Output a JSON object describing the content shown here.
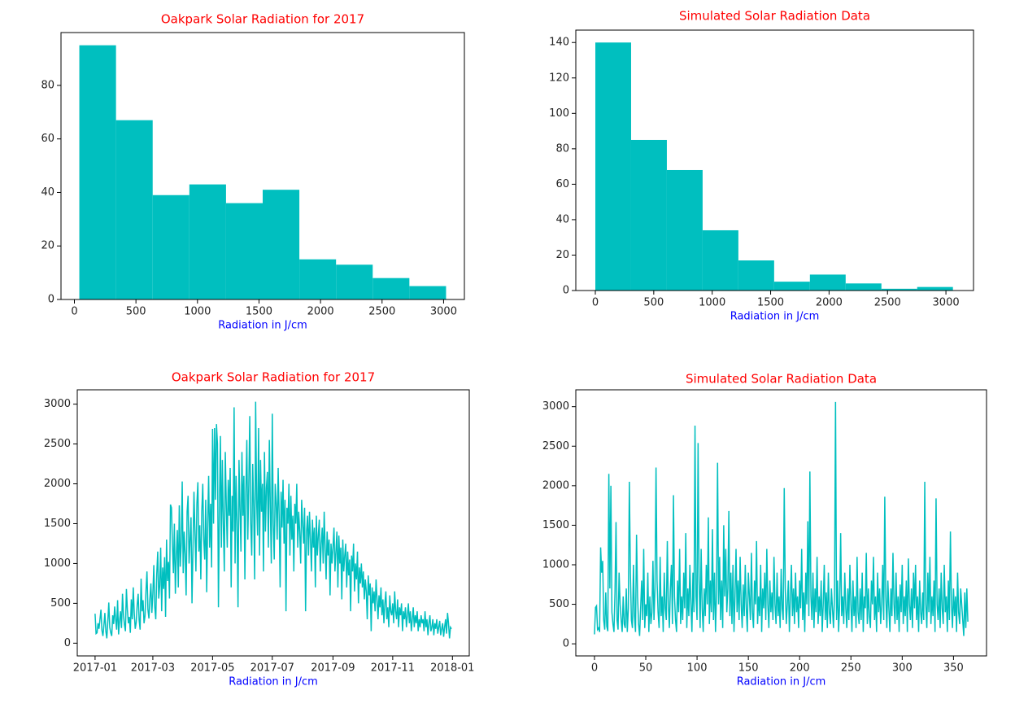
{
  "chart_data": [
    {
      "type": "histogram",
      "title": "Oakpark Solar Radiation for 2017",
      "xlabel": "Radiation in J/cm",
      "color": "#00bfbf",
      "bins": [
        40,
        338,
        636,
        934,
        1232,
        1530,
        1828,
        2126,
        2424,
        2722,
        3020
      ],
      "values": [
        95,
        67,
        39,
        43,
        36,
        41,
        15,
        13,
        8,
        5
      ],
      "xlim": [
        -109,
        3169
      ],
      "ylim": [
        0,
        99.75
      ],
      "xticks": [
        0,
        500,
        1000,
        1500,
        2000,
        2500,
        3000
      ],
      "yticks": [
        0,
        20,
        40,
        60,
        80
      ]
    },
    {
      "type": "histogram",
      "title": "Simulated Solar Radiation Data",
      "xlabel": "Radiation in J/cm",
      "color": "#00bfbf",
      "bins": [
        0,
        306,
        612,
        918,
        1224,
        1530,
        1836,
        2142,
        2448,
        2754,
        3060
      ],
      "values": [
        140,
        85,
        68,
        34,
        17,
        5,
        9,
        4,
        1,
        2
      ],
      "xlim": [
        -167,
        3236
      ],
      "ylim": [
        0,
        147
      ],
      "xticks": [
        0,
        500,
        1000,
        1500,
        2000,
        2500,
        3000
      ],
      "yticks": [
        0,
        20,
        40,
        60,
        80,
        100,
        120,
        140
      ]
    },
    {
      "type": "line",
      "title": "Oakpark Solar Radiation for 2017",
      "xlabel": "Radiation in J/cm",
      "color": "#00bfbf",
      "values": [
        370,
        120,
        130,
        250,
        180,
        300,
        420,
        160,
        90,
        220,
        380,
        150,
        60,
        270,
        510,
        200,
        130,
        90,
        350,
        240,
        460,
        300,
        170,
        540,
        110,
        280,
        400,
        190,
        620,
        350,
        230,
        150,
        680,
        420,
        250,
        330,
        130,
        550,
        300,
        700,
        380,
        180,
        260,
        480,
        620,
        290,
        170,
        810,
        400,
        540,
        250,
        340,
        660,
        900,
        420,
        310,
        560,
        750,
        380,
        620,
        980,
        450,
        300,
        870,
        1150,
        560,
        720,
        1200,
        400,
        950,
        680,
        1080,
        330,
        1300,
        780,
        1020,
        560,
        1740,
        1700,
        1250,
        880,
        1500,
        620,
        1100,
        1420,
        700,
        1730,
        960,
        1250,
        2030,
        880,
        1400,
        1120,
        600,
        1650,
        1850,
        1000,
        1300,
        1580,
        500,
        1200,
        1900,
        1400,
        900,
        1750,
        2020,
        1150,
        1480,
        800,
        1650,
        2000,
        1300,
        1050,
        1800,
        640,
        1500,
        2100,
        1200,
        1750,
        950,
        2690,
        1500,
        2700,
        1800,
        2750,
        2500,
        450,
        1700,
        2600,
        1200,
        2300,
        1500,
        900,
        2400,
        1750,
        1200,
        2050,
        1600,
        2200,
        700,
        1850,
        1400,
        2960,
        1000,
        2100,
        1500,
        450,
        2300,
        1700,
        1150,
        2400,
        1600,
        2100,
        800,
        1900,
        2550,
        1300,
        2000,
        2850,
        1500,
        1100,
        2250,
        1700,
        800,
        3030,
        1800,
        1350,
        2700,
        1100,
        2300,
        1650,
        2000,
        900,
        2400,
        1400,
        1950,
        2150,
        1200,
        2550,
        1700,
        1000,
        2880,
        1500,
        1050,
        2000,
        1750,
        1300,
        2200,
        1600,
        700,
        1900,
        1450,
        2050,
        1250,
        1800,
        400,
        1700,
        1500,
        2000,
        1100,
        1850,
        1300,
        1600,
        900,
        1750,
        1500,
        2000,
        1200,
        1650,
        1400,
        1000,
        1800,
        1500,
        1250,
        1700,
        400,
        1400,
        1600,
        1100,
        1650,
        1300,
        900,
        1550,
        1200,
        1450,
        700,
        1600,
        1100,
        1350,
        1550,
        900,
        1250,
        1450,
        1000,
        1650,
        1200,
        800,
        1400,
        1100,
        1300,
        600,
        1250,
        1000,
        1200,
        1450,
        900,
        1150,
        1400,
        700,
        1350,
        1000,
        1200,
        550,
        1300,
        900,
        1100,
        1250,
        700,
        1150,
        850,
        1050,
        400,
        1100,
        900,
        1250,
        650,
        1000,
        800,
        1150,
        500,
        950,
        750,
        1000,
        700,
        900,
        550,
        800,
        650,
        300,
        850,
        600,
        750,
        150,
        700,
        500,
        650,
        400,
        800,
        550,
        300,
        600,
        450,
        700,
        350,
        550,
        250,
        500,
        650,
        300,
        450,
        200,
        600,
        400,
        350,
        500,
        250,
        650,
        400,
        300,
        550,
        200,
        450,
        350,
        500,
        150,
        400,
        300,
        450,
        200,
        350,
        500,
        250,
        400,
        150,
        300,
        450,
        200,
        350,
        250,
        400,
        150,
        300,
        200,
        350,
        250,
        300,
        150,
        400,
        200,
        300,
        100,
        250,
        350,
        150,
        200,
        300,
        100,
        250,
        180,
        300,
        120,
        200,
        280,
        100,
        180,
        250,
        80,
        200,
        300,
        120,
        380,
        250,
        60,
        200,
        180
      ],
      "xlim": [
        -18.2,
        382.2
      ],
      "ylim": [
        -160,
        3180
      ],
      "xticks": [
        {
          "value": 0,
          "label": "2017-01"
        },
        {
          "value": 59,
          "label": "2017-03"
        },
        {
          "value": 120,
          "label": "2017-05"
        },
        {
          "value": 181,
          "label": "2017-07"
        },
        {
          "value": 243,
          "label": "2017-09"
        },
        {
          "value": 304,
          "label": "2017-11"
        },
        {
          "value": 365,
          "label": "2018-01"
        }
      ],
      "yticks": [
        0,
        500,
        1000,
        1500,
        2000,
        2500,
        3000
      ]
    },
    {
      "type": "line",
      "title": "Simulated Solar Radiation Data",
      "xlabel": "Radiation in J/cm",
      "color": "#00bfbf",
      "values": [
        120,
        460,
        480,
        180,
        200,
        150,
        1220,
        900,
        1050,
        300,
        180,
        650,
        220,
        160,
        2150,
        700,
        2000,
        400,
        250,
        150,
        650,
        1540,
        300,
        180,
        900,
        500,
        300,
        150,
        600,
        250,
        200,
        700,
        150,
        450,
        2050,
        900,
        300,
        200,
        1000,
        350,
        150,
        1380,
        600,
        250,
        100,
        450,
        800,
        300,
        1200,
        200,
        500,
        350,
        900,
        150,
        600,
        250,
        400,
        1050,
        300,
        700,
        2230,
        800,
        400,
        200,
        1100,
        350,
        600,
        150,
        900,
        450,
        300,
        1300,
        500,
        200,
        700,
        1000,
        250,
        1880,
        600,
        300,
        150,
        800,
        400,
        1200,
        250,
        600,
        300,
        900,
        450,
        1400,
        200,
        700,
        350,
        1000,
        500,
        150,
        900,
        400,
        2760,
        600,
        300,
        2540,
        800,
        200,
        1200,
        450,
        150,
        700,
        350,
        1000,
        500,
        1600,
        250,
        800,
        400,
        1450,
        300,
        900,
        150,
        650,
        2290,
        500,
        1100,
        300,
        800,
        200,
        1500,
        600,
        1200,
        400,
        700,
        1680,
        350,
        900,
        250,
        1000,
        150,
        600,
        1200,
        400,
        800,
        300,
        1100,
        500,
        200,
        750,
        350,
        1000,
        450,
        150,
        900,
        600,
        300,
        1150,
        400,
        200,
        800,
        500,
        1300,
        250,
        600,
        350,
        1000,
        150,
        700,
        450,
        900,
        300,
        1200,
        500,
        200,
        800,
        400,
        650,
        300,
        1100,
        500,
        250,
        900,
        350,
        600,
        200,
        950,
        450,
        300,
        1970,
        700,
        250,
        500,
        800,
        150,
        600,
        1000,
        350,
        700,
        250,
        900,
        400,
        600,
        200,
        800,
        450,
        1200,
        300,
        650,
        150,
        900,
        500,
        1550,
        350,
        2180,
        600,
        300,
        900,
        200,
        700,
        400,
        1100,
        250,
        600,
        350,
        800,
        150,
        500,
        1000,
        300,
        650,
        200,
        900,
        400,
        250,
        700,
        450,
        200,
        600,
        3060,
        300,
        800,
        150,
        500,
        1400,
        350,
        600,
        250,
        900,
        450,
        200,
        700,
        300,
        1000,
        500,
        150,
        800,
        350,
        600,
        200,
        1100,
        400,
        250,
        700,
        300,
        900,
        150,
        600,
        450,
        1150,
        250,
        700,
        350,
        200,
        800,
        500,
        1100,
        300,
        600,
        150,
        900,
        400,
        700,
        250,
        500,
        1000,
        300,
        1860,
        600,
        200,
        800,
        450,
        150,
        700,
        350,
        1150,
        500,
        250,
        900,
        300,
        600,
        150,
        750,
        400,
        1000,
        250,
        600,
        350,
        800,
        150,
        1080,
        500,
        300,
        700,
        200,
        900,
        450,
        1000,
        300,
        600,
        150,
        800,
        400,
        250,
        650,
        300,
        2050,
        500,
        200,
        900,
        400,
        1100,
        250,
        600,
        350,
        800,
        150,
        1840,
        500,
        300,
        700,
        200,
        900,
        450,
        250,
        1000,
        400,
        600,
        150,
        800,
        300,
        1420,
        500,
        200,
        700,
        350,
        600,
        150,
        900,
        400,
        250,
        700,
        500,
        300,
        100,
        650,
        200,
        700,
        280
      ],
      "xlim": [
        -18.2,
        382.2
      ],
      "ylim": [
        -153,
        3213
      ],
      "xticks": [
        0,
        50,
        100,
        150,
        200,
        250,
        300,
        350
      ],
      "yticks": [
        0,
        500,
        1000,
        1500,
        2000,
        2500,
        3000
      ]
    }
  ]
}
